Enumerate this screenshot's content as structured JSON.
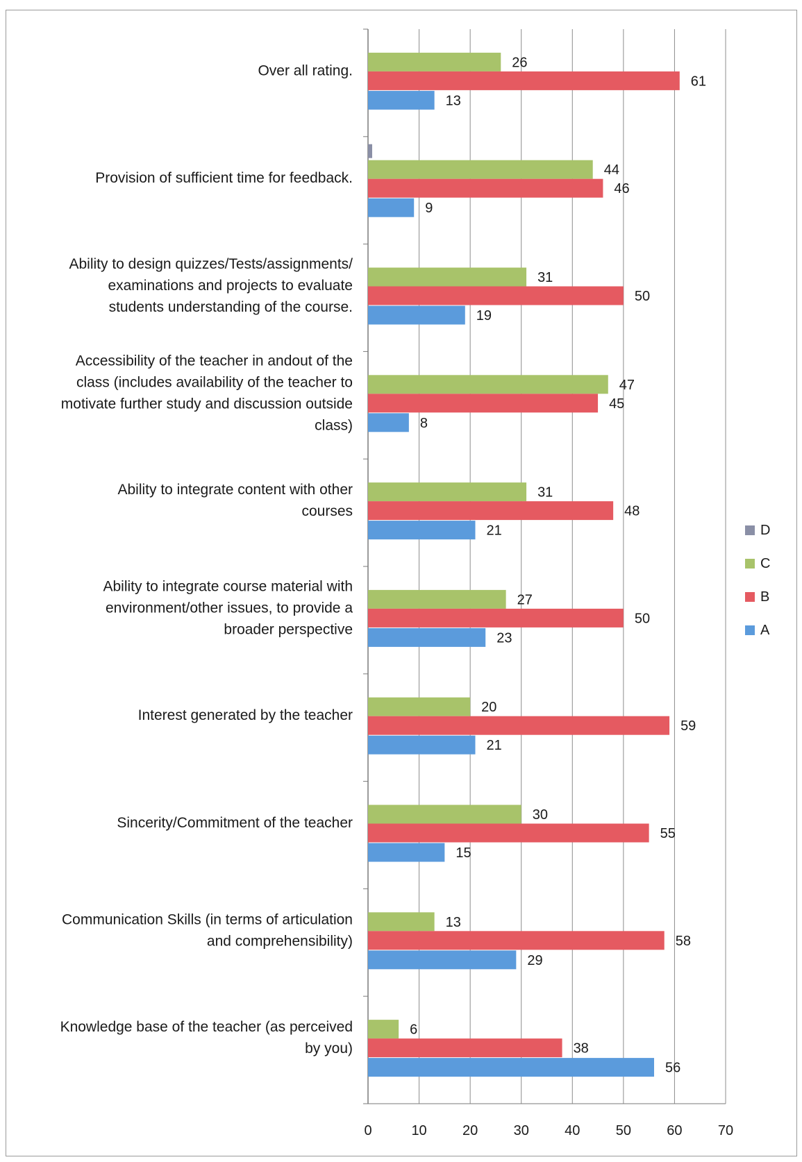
{
  "chart_data": {
    "type": "bar",
    "orientation": "horizontal",
    "title": "",
    "xlabel": "",
    "ylabel": "",
    "xlim": [
      0,
      70
    ],
    "x_ticks": [
      "0",
      "10",
      "20",
      "30",
      "40",
      "50",
      "60",
      "70"
    ],
    "grid": true,
    "legend_position": "right",
    "categories": [
      [
        "Over all rating."
      ],
      [
        "Provision of sufficient time for feedback."
      ],
      [
        "Ability to design quizzes/Tests/assignments/",
        "examinations and projects to evaluate",
        "students understanding of the course."
      ],
      [
        "Accessibility of the teacher in andout  of  the",
        "class  (includes availability of  the  teacher to",
        "motivate further study and discussion outside",
        "class)"
      ],
      [
        "Ability to integrate  content  with  other",
        "courses"
      ],
      [
        "Ability to integrate course material with",
        "environment/other issues, to provide a",
        "broader perspective"
      ],
      [
        "Interest generated by the teacher"
      ],
      [
        "Sincerity/Commitment of the teacher"
      ],
      [
        "Communication Skills (in terms of articulation",
        "and comprehensibility)"
      ],
      [
        "Knowledge base of the teacher (as perceived",
        "by you)"
      ]
    ],
    "series": [
      {
        "name": "D",
        "color": "#8a8fa6",
        "values": [
          0,
          1,
          0,
          0,
          0,
          0,
          0,
          0,
          0,
          0
        ],
        "labels": [
          "",
          "",
          "",
          "",
          "",
          "",
          "",
          "",
          "",
          ""
        ]
      },
      {
        "name": "C",
        "color": "#a8c36a",
        "values": [
          26,
          44,
          31,
          47,
          31,
          27,
          20,
          30,
          13,
          6
        ],
        "labels": [
          "26",
          "44",
          "31",
          "47",
          "31",
          "27",
          "20",
          "30",
          "13",
          "6"
        ]
      },
      {
        "name": "B",
        "color": "#e55a61",
        "values": [
          61,
          46,
          50,
          45,
          48,
          50,
          59,
          55,
          58,
          38
        ],
        "labels": [
          "61",
          "46",
          "50",
          "45",
          "48",
          "50",
          "59",
          "55",
          "58",
          "38"
        ]
      },
      {
        "name": "A",
        "color": "#5b9bdc",
        "values": [
          13,
          9,
          19,
          8,
          21,
          23,
          21,
          15,
          29,
          56
        ],
        "labels": [
          "13",
          "9",
          "19",
          "8",
          "21",
          "23",
          "21",
          "15",
          "29",
          "56"
        ]
      }
    ],
    "legend": [
      "D",
      "C",
      "B",
      "A"
    ]
  }
}
